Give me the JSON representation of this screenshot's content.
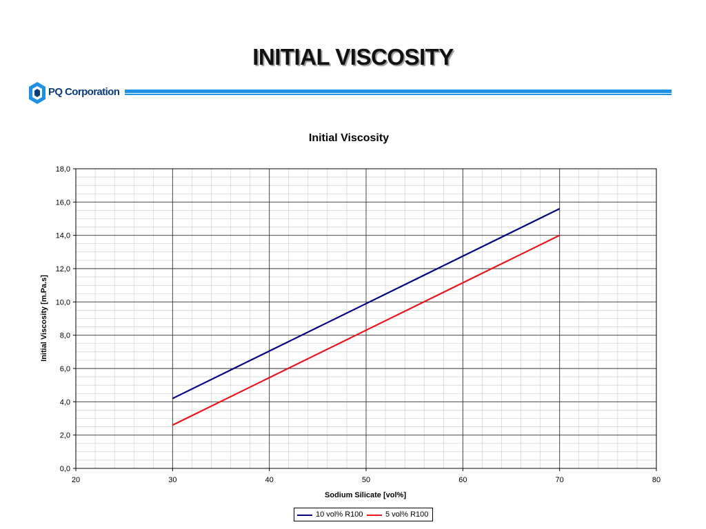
{
  "slide": {
    "title": "INITIAL VISCOSITY"
  },
  "logo": {
    "text": "PQ Corporation",
    "color": "#0b3c7a",
    "accent": "#1e90e6"
  },
  "chart_data": {
    "type": "line",
    "title": "Initial Viscosity",
    "xlabel": "Sodium Silicate [vol%]",
    "ylabel": "Initial Viscosity [m.Pa.s]",
    "xlim": [
      20,
      80
    ],
    "ylim": [
      0,
      18
    ],
    "x_ticks": [
      "20",
      "30",
      "40",
      "50",
      "60",
      "70",
      "80"
    ],
    "y_ticks": [
      "0,0",
      "2,0",
      "4,0",
      "6,0",
      "8,0",
      "10,0",
      "12,0",
      "14,0",
      "16,0",
      "18,0"
    ],
    "grid": "major and minor",
    "legend_position": "bottom",
    "series": [
      {
        "name": "10 vol% R100",
        "color": "#000080",
        "x": [
          30,
          70
        ],
        "y": [
          4.2,
          15.6
        ]
      },
      {
        "name": "5 vol% R100",
        "color": "#e8141e",
        "x": [
          30,
          70
        ],
        "y": [
          2.6,
          14.0
        ]
      }
    ]
  }
}
